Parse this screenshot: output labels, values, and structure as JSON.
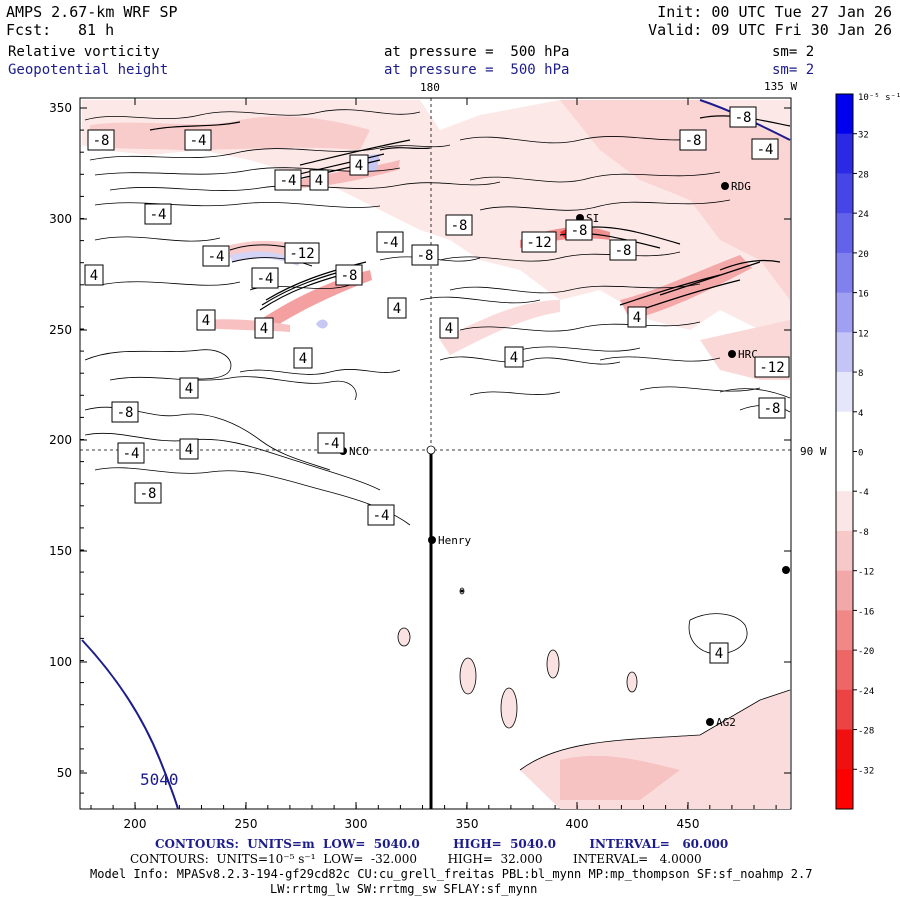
{
  "header": {
    "model": "AMPS 2.67-km WRF SP",
    "forecast_label": "Fcst:",
    "forecast_value": "81 h",
    "init": "Init: 00 UTC Tue 27 Jan 26",
    "valid": "Valid: 09 UTC Fri 30 Jan 26",
    "field1": "Relative vorticity",
    "field1_level": "at pressure =  500 hPa",
    "field1_sm": "sm= 2",
    "field2": "Geopotential height",
    "field2_level": "at pressure =  500 hPa",
    "field2_sm": "sm= 2"
  },
  "map": {
    "lon_label_180": "180",
    "lon_label_135w": "135 W",
    "lat_label_90w": "90 W",
    "x_ticks": [
      "200",
      "250",
      "300",
      "350",
      "400",
      "450"
    ],
    "y_ticks": [
      "350",
      "300",
      "250",
      "200",
      "150",
      "100",
      "50"
    ],
    "height_contour_label": "5040",
    "stations": [
      {
        "name": "NCO"
      },
      {
        "name": "Henry"
      },
      {
        "name": "RDG"
      },
      {
        "name": "HRC"
      },
      {
        "name": "AG2"
      },
      {
        "name": "SI"
      }
    ],
    "contour_labels": [
      "-8",
      "-4",
      "-8",
      "-8",
      "-4",
      "4",
      "-4",
      "4",
      "-4",
      "-8",
      "-4",
      "-8",
      "-12",
      "-8",
      "-8",
      "-4",
      "-12",
      "4",
      "-4",
      "-8",
      "4",
      "4",
      "4",
      "4",
      "4",
      "4",
      "4",
      "4",
      "-12",
      "-8",
      "-8",
      "-4",
      "4",
      "-4",
      "-8",
      "-4",
      "4"
    ]
  },
  "colorbar": {
    "unit": "10⁻⁵ s⁻¹",
    "labels": [
      "32",
      "28",
      "24",
      "20",
      "16",
      "12",
      "8",
      "4",
      "0",
      "-4",
      "-8",
      "-12",
      "-16",
      "-20",
      "-24",
      "-28",
      "-32"
    ],
    "colors": [
      "#0000f0",
      "#2a2ae6",
      "#4646e8",
      "#6262ea",
      "#8080ee",
      "#a0a0f2",
      "#c4c4f6",
      "#e6e6fa",
      "#ffffff",
      "#ffffff",
      "#fae6e6",
      "#f6c8c8",
      "#f2a8a8",
      "#f08888",
      "#ee6666",
      "#ec4444",
      "#f01010",
      "#ff0000"
    ]
  },
  "footer": {
    "contours1": "CONTOURS:  UNITS=m  LOW=  5040.0        HIGH=  5040.0        INTERVAL=   60.000",
    "contours2": "CONTOURS:  UNITS=10⁻⁵ s⁻¹  LOW=  -32.000        HIGH=  32.000        INTERVAL=   4.0000",
    "model_info1": "Model Info: MPASv8.2.3-194-gf29cd82c CU:cu_grell_freitas PBL:bl_mynn MP:mp_thompson SF:sf_noahmp 2.7",
    "model_info2": "LW:rrtmg_lw SW:rrtmg_sw SFLAY:sf_mynn"
  }
}
